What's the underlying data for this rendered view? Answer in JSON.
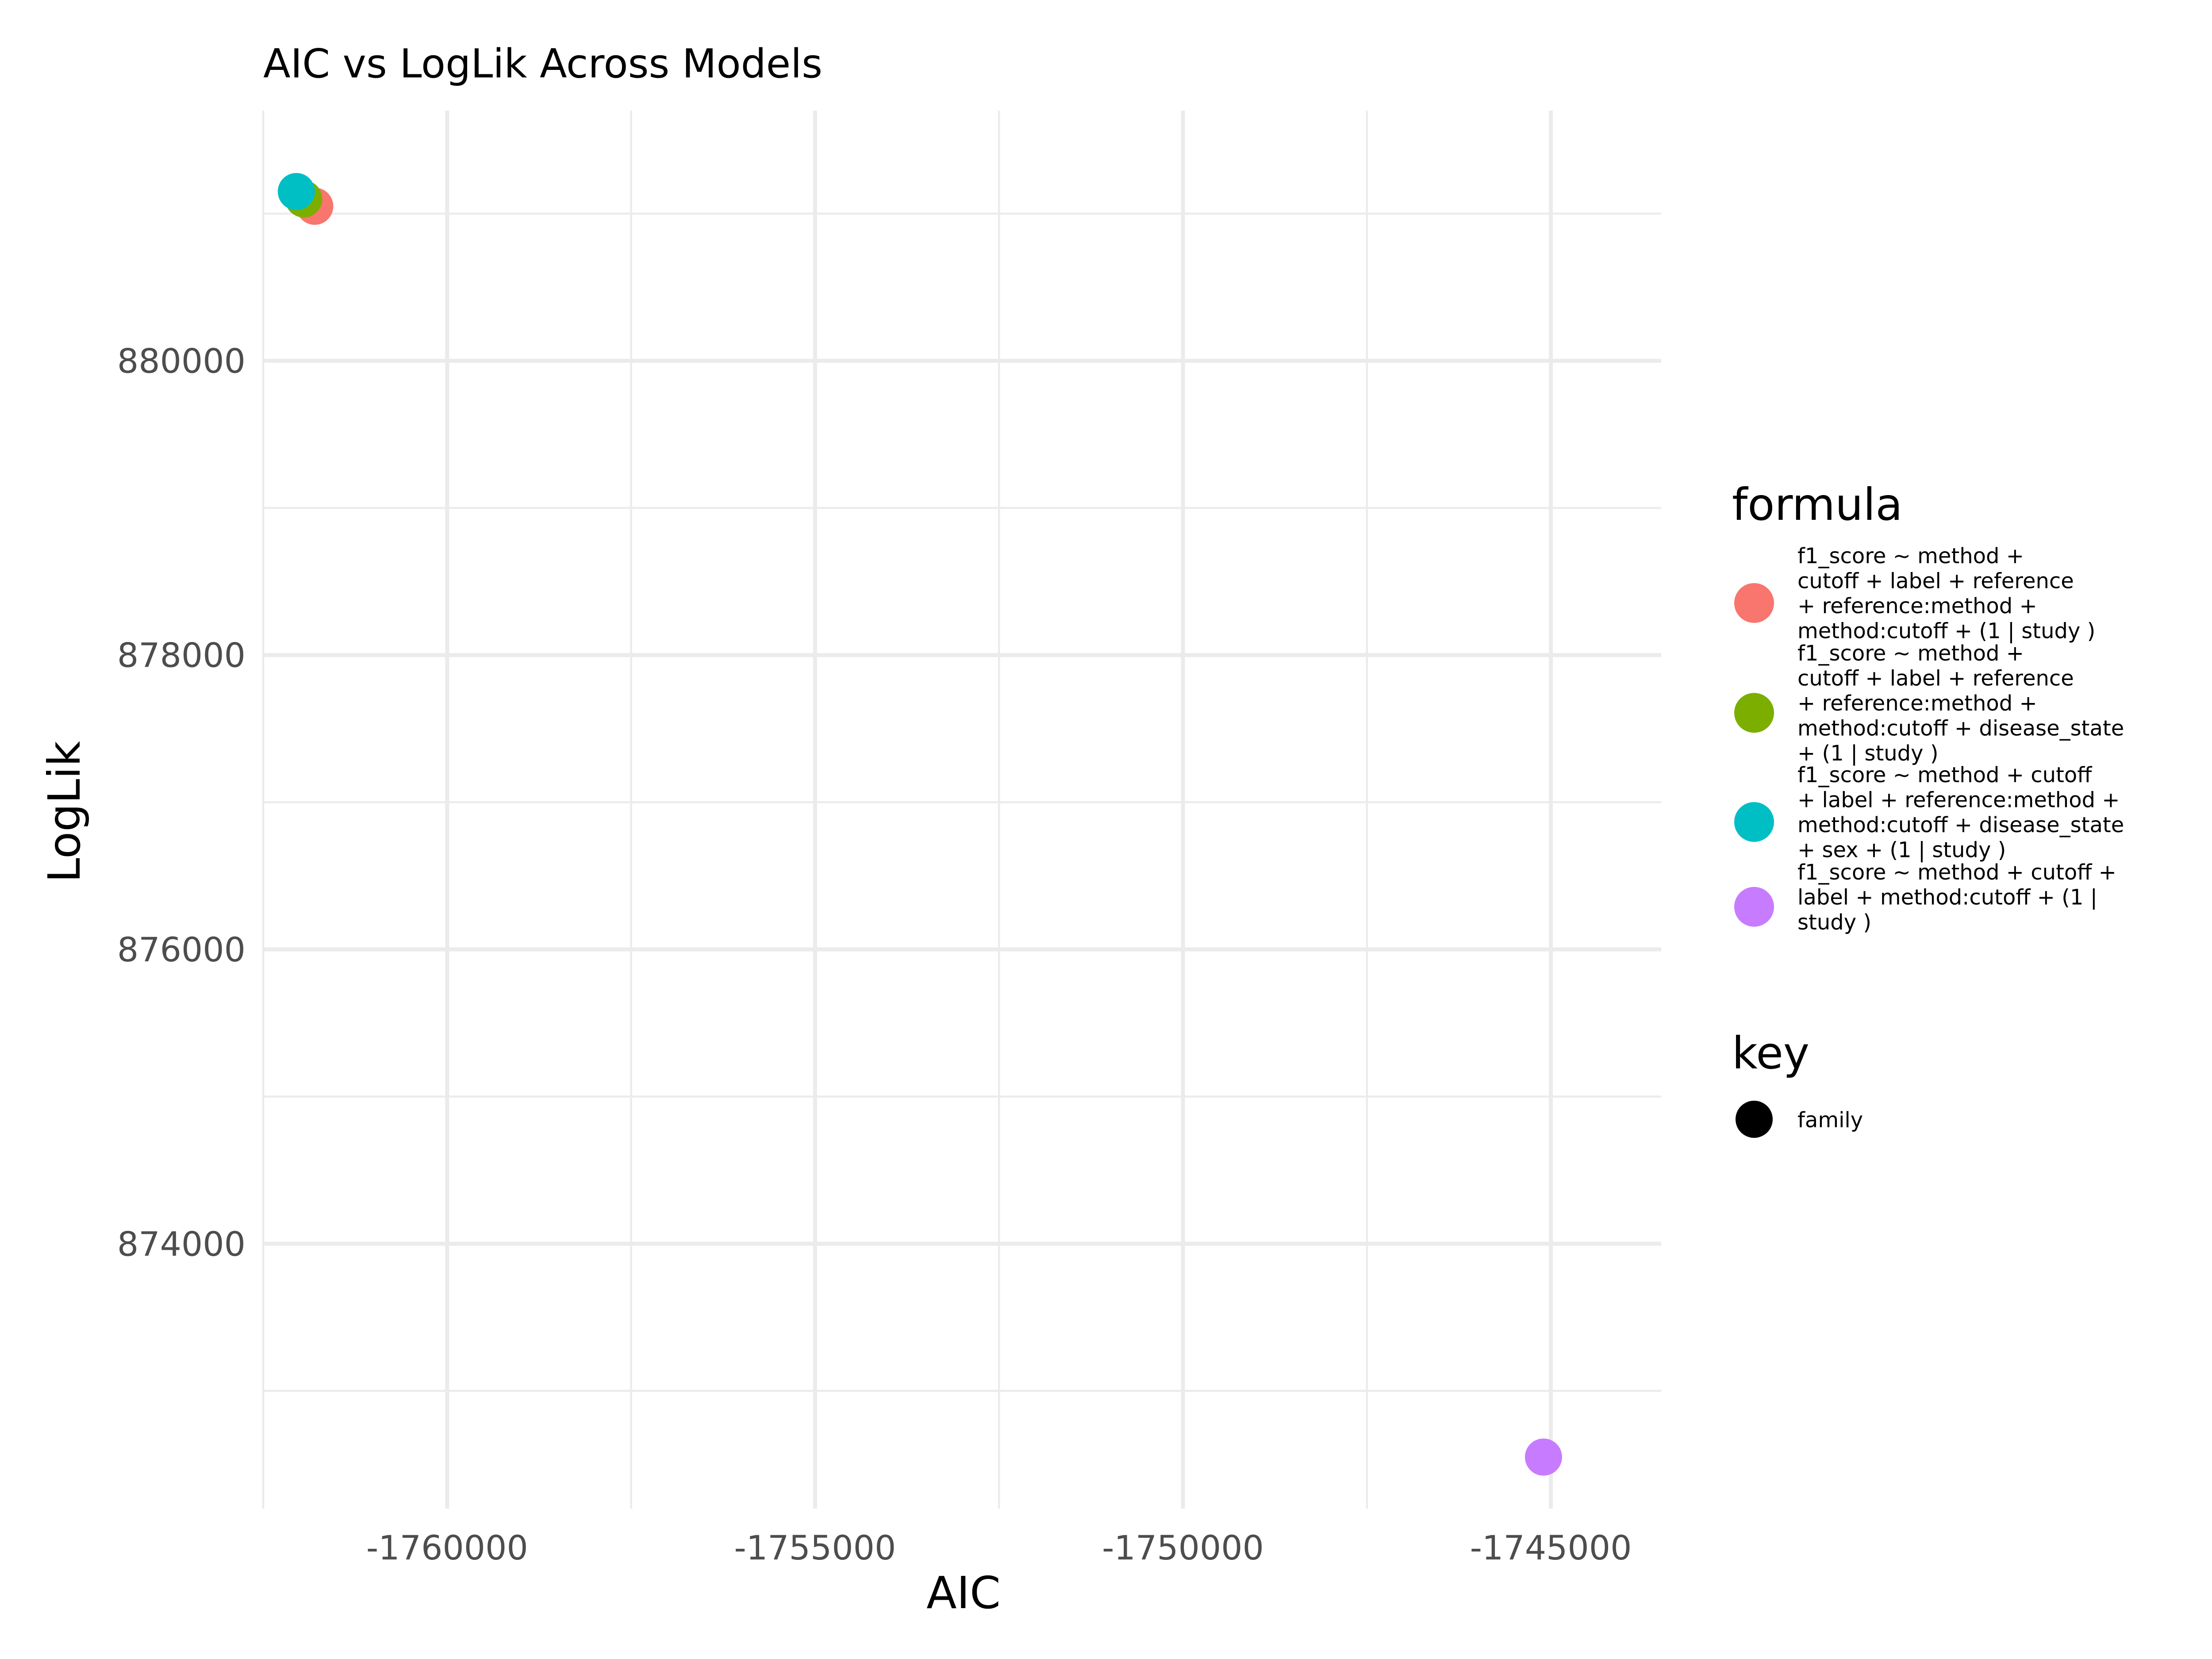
{
  "chart_data": {
    "type": "scatter",
    "title": "AIC vs LogLik Across Models",
    "xlabel": "AIC",
    "ylabel": "LogLik",
    "xlim": [
      -1762500,
      -1743500
    ],
    "ylim": [
      872200,
      881700
    ],
    "x_ticks": [
      -1760000,
      -1755000,
      -1750000,
      -1745000
    ],
    "x_tick_labels": [
      "-1760000",
      "-1755000",
      "-1750000",
      "-1745000"
    ],
    "y_ticks": [
      874000,
      876000,
      878000,
      880000
    ],
    "y_tick_labels": [
      "874000",
      "876000",
      "878000",
      "880000"
    ],
    "grid": true,
    "legend_position": "right",
    "series": [
      {
        "name": "f1_score ~ method + cutoff + label + reference + reference:method + method:cutoff + (1 | study )",
        "legend_lines": [
          "f1_score ~ method +",
          "cutoff + label + reference",
          "+ reference:method +",
          "method:cutoff + (1 | study )"
        ],
        "color": "#F8766D",
        "x": [
          -1761800
        ],
        "y": [
          881050
        ]
      },
      {
        "name": "f1_score ~ method + cutoff + label + reference + reference:method + method:cutoff + disease_state + (1 | study )",
        "legend_lines": [
          "f1_score ~ method +",
          "cutoff + label + reference",
          "+ reference:method +",
          "method:cutoff + disease_state",
          "+ (1 | study )"
        ],
        "color": "#7CAE00",
        "x": [
          -1761950
        ],
        "y": [
          881100
        ]
      },
      {
        "name": "f1_score ~ method + cutoff + label + reference:method + method:cutoff + disease_state + sex + (1 | study )",
        "legend_lines": [
          "f1_score ~ method + cutoff",
          "+ label + reference:method +",
          "method:cutoff + disease_state",
          "+ sex + (1 | study )"
        ],
        "color": "#00BFC4",
        "x": [
          -1762050
        ],
        "y": [
          881150
        ]
      },
      {
        "name": "f1_score ~ method + cutoff + label + method:cutoff + (1 | study )",
        "legend_lines": [
          "f1_score ~ method + cutoff +",
          "label + method:cutoff + (1 |",
          "study )"
        ],
        "color": "#C77CFF",
        "x": [
          -1745100
        ],
        "y": [
          872550
        ]
      }
    ],
    "legends": {
      "formula_title": "formula",
      "key_title": "key",
      "key_items": [
        {
          "label": "family",
          "color": "#000000"
        }
      ]
    }
  }
}
